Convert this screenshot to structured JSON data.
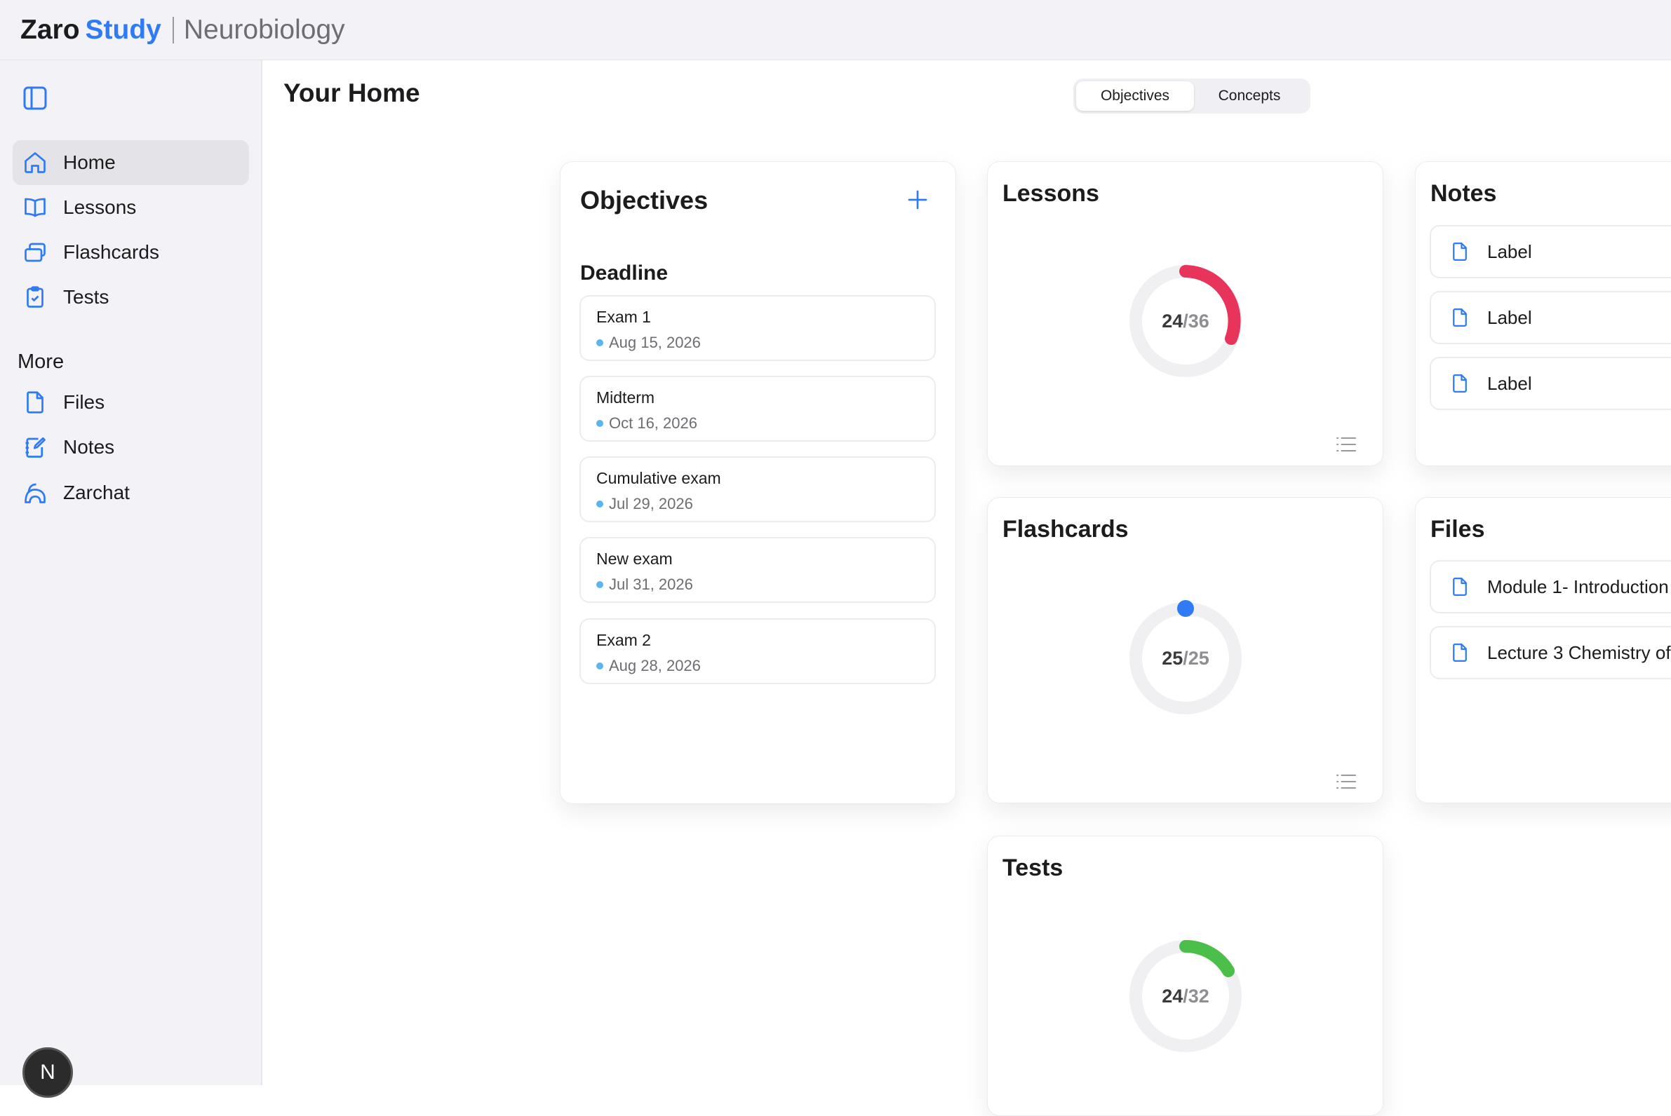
{
  "header": {
    "brand_part1": "Zaro",
    "brand_part2": "Study",
    "course": "Neurobiology"
  },
  "sidebar": {
    "toggle_icon": "sidebar-toggle-icon",
    "items": [
      {
        "label": "Home",
        "icon": "home-icon",
        "active": true
      },
      {
        "label": "Lessons",
        "icon": "book-icon"
      },
      {
        "label": "Flashcards",
        "icon": "cards-icon"
      },
      {
        "label": "Tests",
        "icon": "clipboard-check-icon"
      }
    ],
    "more_title": "More",
    "more_items": [
      {
        "label": "Files",
        "icon": "file-icon"
      },
      {
        "label": "Notes",
        "icon": "notebook-icon"
      },
      {
        "label": "Zarchat",
        "icon": "chat-icon"
      }
    ],
    "avatar": "N"
  },
  "main": {
    "title": "Your Home",
    "tabs": [
      {
        "label": "Objectives",
        "active": true
      },
      {
        "label": "Concepts"
      }
    ]
  },
  "objectives": {
    "title": "Objectives",
    "section": "Deadline",
    "items": [
      {
        "name": "Exam 1",
        "date": "Aug 15, 2026"
      },
      {
        "name": "Midterm",
        "date": "Oct 16, 2026"
      },
      {
        "name": "Cumulative exam",
        "date": "Jul 29, 2026"
      },
      {
        "name": "New exam",
        "date": "Jul 31, 2026"
      },
      {
        "name": "Exam 2",
        "date": "Aug 28, 2026"
      }
    ]
  },
  "lessons": {
    "title": "Lessons",
    "done": "24",
    "total": "/36",
    "color": "#e8335a"
  },
  "flashcards": {
    "title": "Flashcards",
    "done": "25",
    "total": "/25",
    "color": "#2f7bf5"
  },
  "tests": {
    "title": "Tests",
    "done": "24",
    "total": "/32",
    "color": "#4cbf4a"
  },
  "notes": {
    "title": "Notes",
    "items": [
      "Label",
      "Label",
      "Label"
    ]
  },
  "files": {
    "title": "Files",
    "items": [
      "Module 1- Introduction",
      "Lecture 3 Chemistry of"
    ]
  },
  "colors": {
    "accent": "#2f7bf5",
    "bg": "#f2f2f7"
  }
}
